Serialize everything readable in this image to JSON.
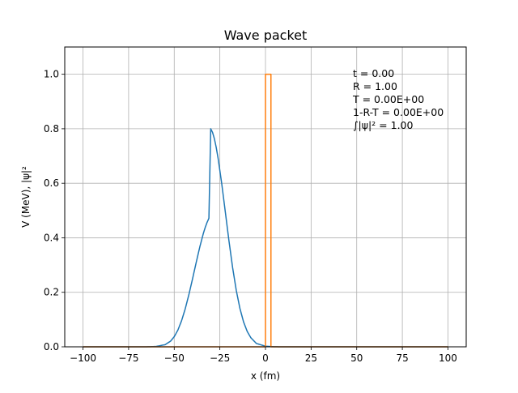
{
  "chart_data": {
    "type": "line",
    "title": "Wave packet",
    "xlabel": "x (fm)",
    "ylabel": "V (MeV), |ψ|²",
    "xlim": [
      -110,
      110
    ],
    "ylim": [
      0,
      1.1
    ],
    "xticks": [
      -100,
      -75,
      -50,
      -25,
      0,
      25,
      50,
      75,
      100
    ],
    "xtick_labels": [
      "−100",
      "−75",
      "−50",
      "−25",
      "0",
      "25",
      "50",
      "75",
      "100"
    ],
    "yticks": [
      0.0,
      0.2,
      0.4,
      0.6,
      0.8,
      1.0
    ],
    "ytick_labels": [
      "0.0",
      "0.2",
      "0.4",
      "0.6",
      "0.8",
      "1.0"
    ],
    "grid": true,
    "series": [
      {
        "color": "#1f77b4",
        "x": [
          -100,
          -80,
          -70,
          -65,
          -60,
          -55,
          -52,
          -50,
          -48,
          -46,
          -44,
          -42,
          -40,
          -38,
          -36,
          -34,
          -33,
          -32,
          -31,
          -30,
          -29,
          -28,
          -27,
          -26,
          -24,
          -22,
          -20,
          -18,
          -16,
          -14,
          -12,
          -10,
          -8,
          -5,
          0,
          5,
          10,
          50,
          100
        ],
        "y": [
          0,
          0,
          0,
          0.0001,
          0.0012,
          0.0078,
          0.0209,
          0.0371,
          0.0614,
          0.0953,
          0.1388,
          0.1907,
          0.2485,
          0.3084,
          0.3661,
          0.4171,
          0.4384,
          0.4567,
          0.4716,
          0.8,
          0.7865,
          0.7634,
          0.7318,
          0.6932,
          0.6,
          0.4944,
          0.3882,
          0.2903,
          0.2069,
          0.1407,
          0.0912,
          0.0563,
          0.0332,
          0.0124,
          0.0021,
          0.0003,
          0,
          0,
          0
        ]
      },
      {
        "color": "#ff7f0e",
        "x": [
          -100,
          0,
          0,
          3,
          3,
          100
        ],
        "y": [
          0,
          0,
          1.0,
          1.0,
          0,
          0
        ]
      }
    ],
    "annotations": [
      "t = 0.00",
      "R = 1.00",
      "T = 0.00E+00",
      "1-R-T = 0.00E+00",
      "∫|ψ|² = 1.00"
    ]
  }
}
